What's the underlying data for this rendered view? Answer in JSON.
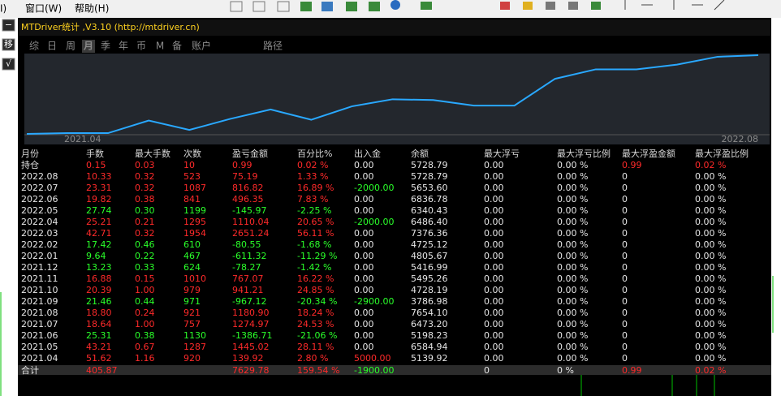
{
  "menu": [
    "I)",
    "窗口(W)",
    "帮助(H)"
  ],
  "side_buttons": [
    "−",
    "移",
    "√"
  ],
  "panel": {
    "title": "MTDriver统计 ,V3.10 (http://mtdriver.cn)",
    "tabs": [
      "综",
      "日",
      "周",
      "月",
      "季",
      "年",
      "币",
      "M",
      "备",
      "账户",
      "路径"
    ],
    "active_tab": 3
  },
  "chart_data": {
    "type": "line",
    "color": "#29a8ff",
    "ylim": [
      0,
      100
    ],
    "categories": [
      null,
      "2021.04",
      null,
      null,
      null,
      null,
      null,
      null,
      null,
      null,
      null,
      null,
      null,
      null,
      null,
      null,
      null,
      null,
      "2022.08"
    ],
    "values": [
      0,
      1,
      1,
      17,
      5,
      19,
      31,
      18,
      35,
      44,
      43,
      36,
      36,
      70,
      82,
      82,
      88,
      98,
      100
    ]
  },
  "table": {
    "headers": [
      "月份",
      "手数",
      "最大手数",
      "次数",
      "盈亏金额",
      "百分比%",
      "出入金",
      "余额",
      "最大浮亏",
      "最大浮亏比例",
      "最大浮盈金额",
      "最大浮盈比例"
    ],
    "rows": [
      [
        "持仓",
        "0.15",
        "0.03",
        "10",
        "0.99",
        "0.02 %",
        "0.00",
        "5728.79",
        "0.00",
        "0.00 %",
        "0.99",
        "0.02 %"
      ],
      [
        "2022.08",
        "10.33",
        "0.32",
        "523",
        "75.19",
        "1.33 %",
        "0.00",
        "5728.79",
        "0.00",
        "0.00 %",
        "0",
        "0.00 %"
      ],
      [
        "2022.07",
        "23.31",
        "0.32",
        "1087",
        "816.82",
        "16.89 %",
        "-2000.00",
        "5653.60",
        "0.00",
        "0.00 %",
        "0",
        "0.00 %"
      ],
      [
        "2022.06",
        "19.82",
        "0.38",
        "841",
        "496.35",
        "7.83 %",
        "0.00",
        "6836.78",
        "0.00",
        "0.00 %",
        "0",
        "0.00 %"
      ],
      [
        "2022.05",
        "27.74",
        "0.30",
        "1199",
        "-145.97",
        "-2.25 %",
        "0.00",
        "6340.43",
        "0.00",
        "0.00 %",
        "0",
        "0.00 %"
      ],
      [
        "2022.04",
        "25.21",
        "0.21",
        "1295",
        "1110.04",
        "20.65 %",
        "-2000.00",
        "6486.40",
        "0.00",
        "0.00 %",
        "0",
        "0.00 %"
      ],
      [
        "2022.03",
        "42.71",
        "0.32",
        "1954",
        "2651.24",
        "56.11 %",
        "0.00",
        "7376.36",
        "0.00",
        "0.00 %",
        "0",
        "0.00 %"
      ],
      [
        "2022.02",
        "17.42",
        "0.46",
        "610",
        "-80.55",
        "-1.68 %",
        "0.00",
        "4725.12",
        "0.00",
        "0.00 %",
        "0",
        "0.00 %"
      ],
      [
        "2022.01",
        "9.64",
        "0.22",
        "467",
        "-611.32",
        "-11.29 %",
        "0.00",
        "4805.67",
        "0.00",
        "0.00 %",
        "0",
        "0.00 %"
      ],
      [
        "2021.12",
        "13.23",
        "0.33",
        "624",
        "-78.27",
        "-1.42 %",
        "0.00",
        "5416.99",
        "0.00",
        "0.00 %",
        "0",
        "0.00 %"
      ],
      [
        "2021.11",
        "16.88",
        "0.15",
        "1010",
        "767.07",
        "16.22 %",
        "0.00",
        "5495.26",
        "0.00",
        "0.00 %",
        "0",
        "0.00 %"
      ],
      [
        "2021.10",
        "20.39",
        "1.00",
        "979",
        "941.21",
        "24.85 %",
        "0.00",
        "4728.19",
        "0.00",
        "0.00 %",
        "0",
        "0.00 %"
      ],
      [
        "2021.09",
        "21.46",
        "0.44",
        "971",
        "-967.12",
        "-20.34 %",
        "-2900.00",
        "3786.98",
        "0.00",
        "0.00 %",
        "0",
        "0.00 %"
      ],
      [
        "2021.08",
        "18.80",
        "0.24",
        "921",
        "1180.90",
        "18.24 %",
        "0.00",
        "7654.10",
        "0.00",
        "0.00 %",
        "0",
        "0.00 %"
      ],
      [
        "2021.07",
        "18.64",
        "1.00",
        "757",
        "1274.97",
        "24.53 %",
        "0.00",
        "6473.20",
        "0.00",
        "0.00 %",
        "0",
        "0.00 %"
      ],
      [
        "2021.06",
        "25.31",
        "0.38",
        "1130",
        "-1386.71",
        "-21.06 %",
        "0.00",
        "5198.23",
        "0.00",
        "0.00 %",
        "0",
        "0.00 %"
      ],
      [
        "2021.05",
        "43.21",
        "0.67",
        "1287",
        "1445.02",
        "28.11 %",
        "0.00",
        "6584.94",
        "0.00",
        "0.00 %",
        "0",
        "0.00 %"
      ],
      [
        "2021.04",
        "51.62",
        "1.16",
        "920",
        "139.92",
        "2.80 %",
        "5000.00",
        "5139.92",
        "0.00",
        "0.00 %",
        "0",
        "0.00 %"
      ],
      [
        "合计",
        "405.87",
        null,
        null,
        "7629.78",
        "159.54 %",
        "-1900.00",
        null,
        "0",
        "0 %",
        "0.99",
        "0.02 %"
      ]
    ]
  }
}
